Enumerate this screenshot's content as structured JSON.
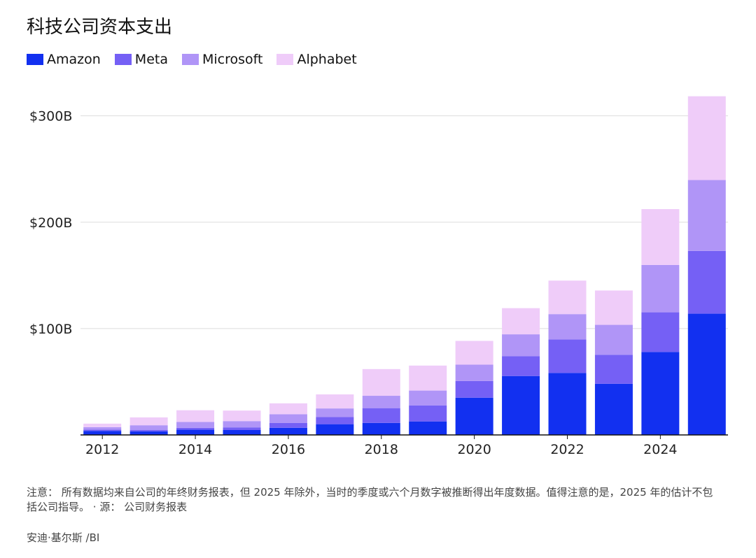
{
  "chart_data": {
    "type": "stacked-bar",
    "title": "科技公司资本支出",
    "categories": [
      "2012",
      null,
      "2014",
      null,
      "2016",
      null,
      "2018",
      null,
      "2020",
      null,
      "2022",
      null,
      "2024",
      null
    ],
    "series": [
      {
        "name": "Amazon",
        "color": "#1230f0",
        "values": [
          3.8,
          3.4,
          4.9,
          4.6,
          6.7,
          10.1,
          11.3,
          12.7,
          35.0,
          55.4,
          58.3,
          48.1,
          78.0,
          114.0
        ]
      },
      {
        "name": "Meta",
        "color": "#7560f5",
        "values": [
          1.2,
          1.4,
          1.8,
          2.5,
          4.5,
          6.7,
          13.9,
          15.1,
          15.7,
          18.6,
          31.4,
          27.3,
          37.3,
          59.0
        ]
      },
      {
        "name": "Microsoft",
        "color": "#b095f7",
        "values": [
          2.3,
          4.3,
          5.5,
          5.9,
          8.3,
          8.1,
          11.6,
          13.9,
          15.4,
          20.6,
          23.9,
          28.1,
          44.5,
          66.6
        ]
      },
      {
        "name": "Alphabet",
        "color": "#efccf9",
        "values": [
          3.3,
          7.4,
          11.0,
          9.9,
          10.2,
          13.2,
          25.1,
          23.5,
          22.3,
          24.6,
          31.5,
          32.3,
          52.5,
          78.8
        ]
      }
    ],
    "ylim": [
      0,
      330
    ],
    "yticks": [
      {
        "value": 100,
        "label": "$100B"
      },
      {
        "value": 200,
        "label": "$200B"
      },
      {
        "value": 300,
        "label": "$300B"
      }
    ],
    "grid": true,
    "note": "注意： 所有数据均来自公司的年终财务报表，但 2025 年除外，当时的季度或六个月数字被推断得出年度数据。值得注意的是，2025 年的估计不包括公司指导。",
    "source": "· 源： 公司财务报表",
    "credit": "安迪·基尔斯 /BI"
  }
}
